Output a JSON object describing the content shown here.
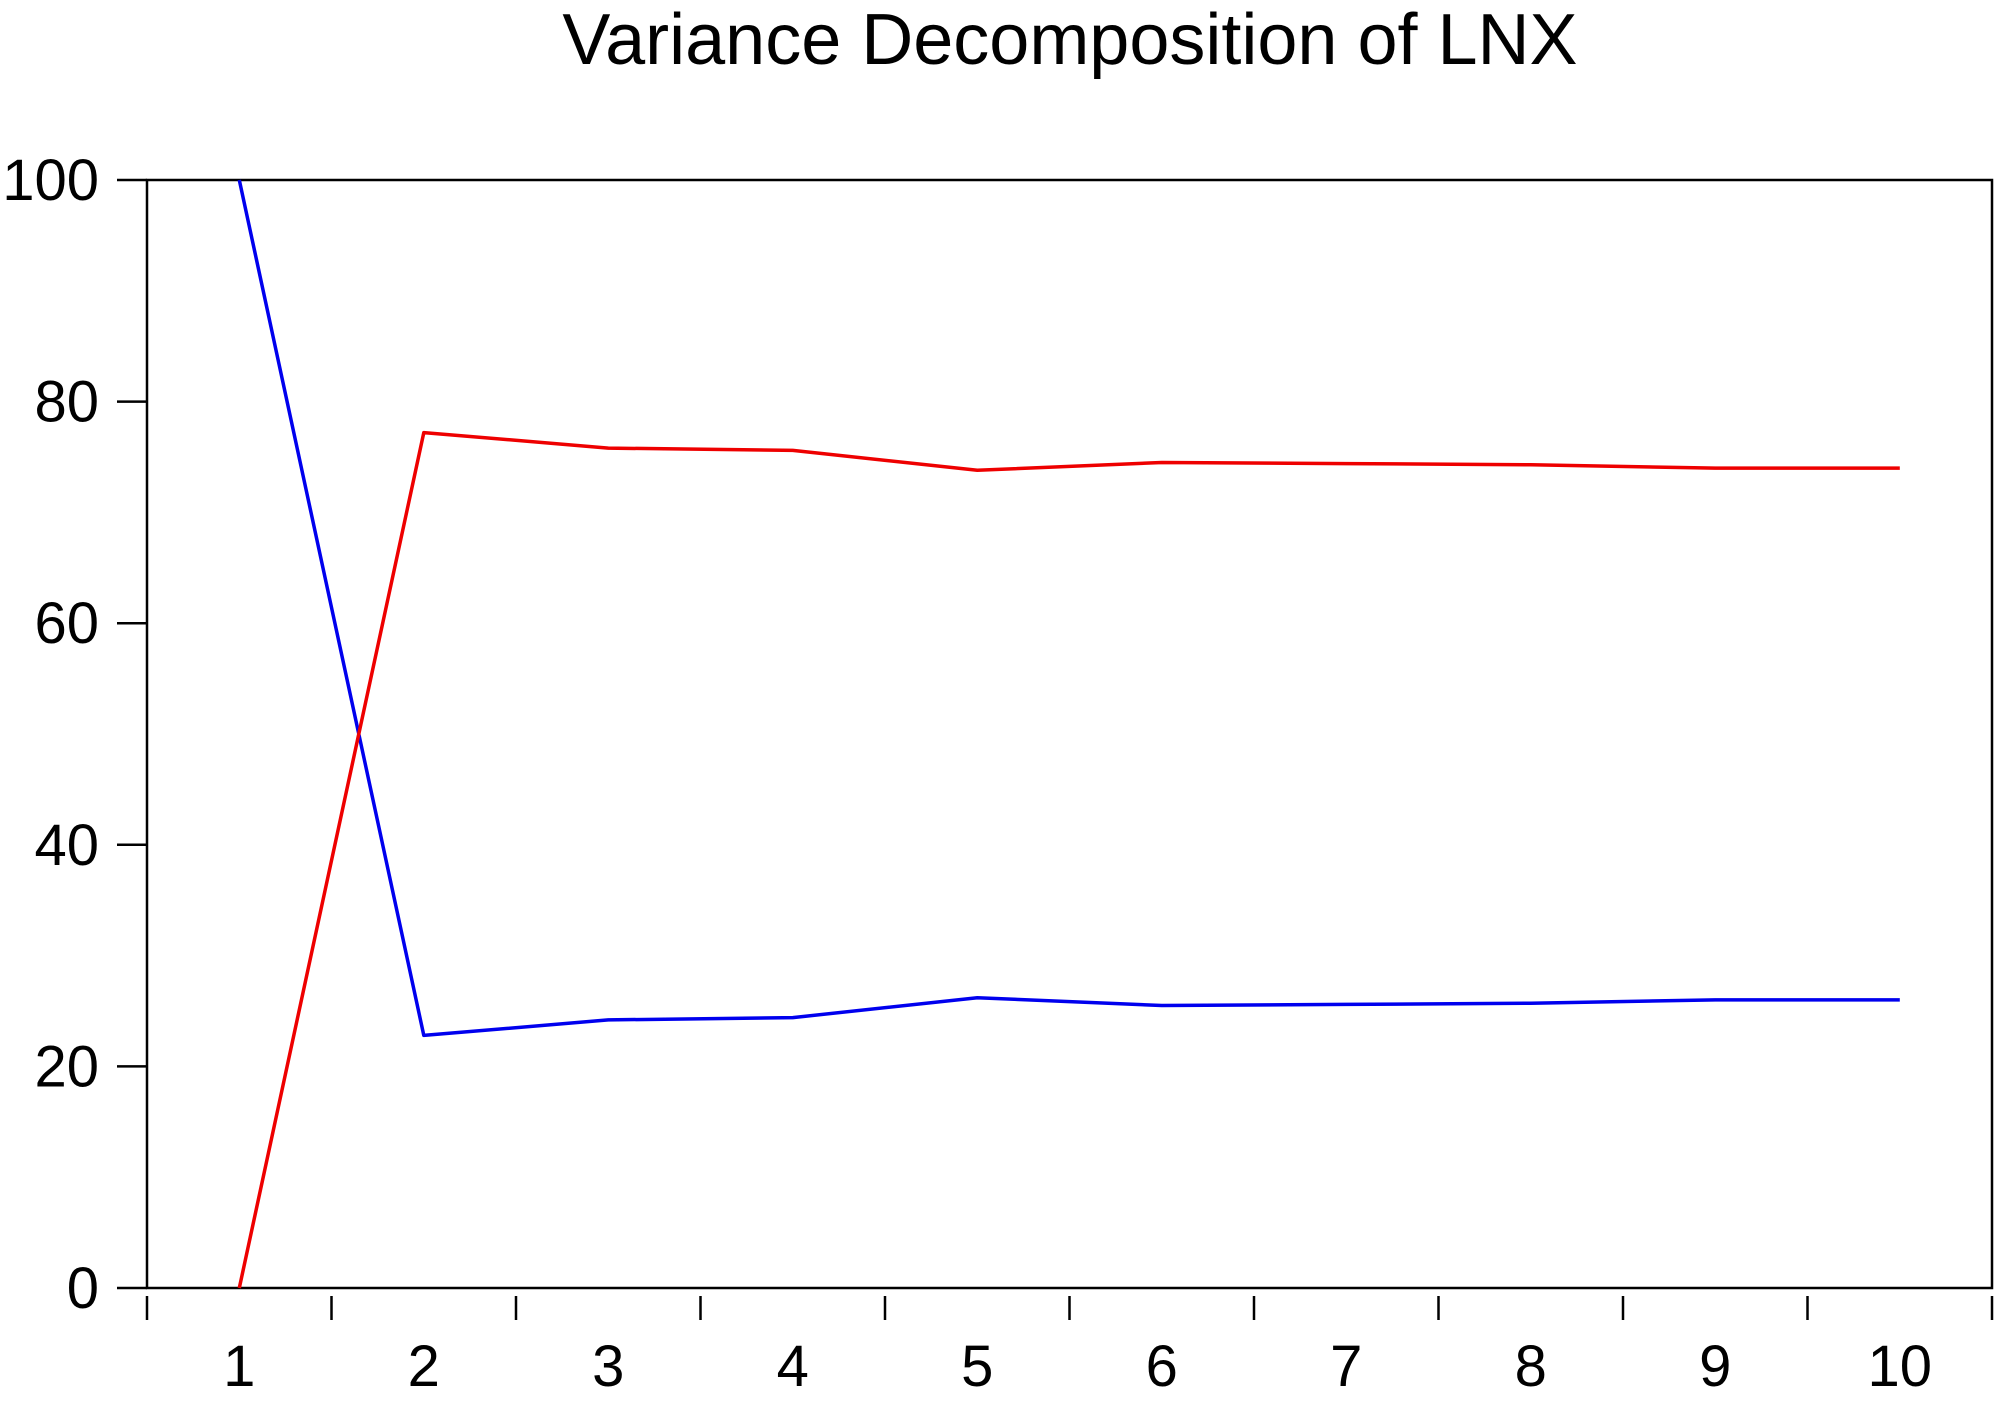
{
  "chart_data": {
    "type": "line",
    "title": "Variance Decomposition of LNX",
    "x": [
      1,
      2,
      3,
      4,
      5,
      6,
      7,
      8,
      9,
      10
    ],
    "x_tick_labels": [
      "1",
      "2",
      "3",
      "4",
      "5",
      "6",
      "7",
      "8",
      "9",
      "10"
    ],
    "y_ticks": [
      0,
      20,
      40,
      60,
      80,
      100
    ],
    "y_tick_labels": [
      "0",
      "20",
      "40",
      "60",
      "80",
      "100"
    ],
    "xlim": [
      0.5,
      10.5
    ],
    "ylim": [
      0,
      100
    ],
    "grid": false,
    "series": [
      {
        "color": "#0000ee",
        "values": [
          100,
          22.8,
          24.2,
          24.4,
          26.2,
          25.5,
          25.6,
          25.7,
          26.0,
          26.0
        ]
      },
      {
        "color": "#ee0000",
        "values": [
          0,
          77.2,
          75.8,
          75.6,
          73.8,
          74.5,
          74.4,
          74.3,
          74.0,
          74.0
        ]
      }
    ]
  }
}
